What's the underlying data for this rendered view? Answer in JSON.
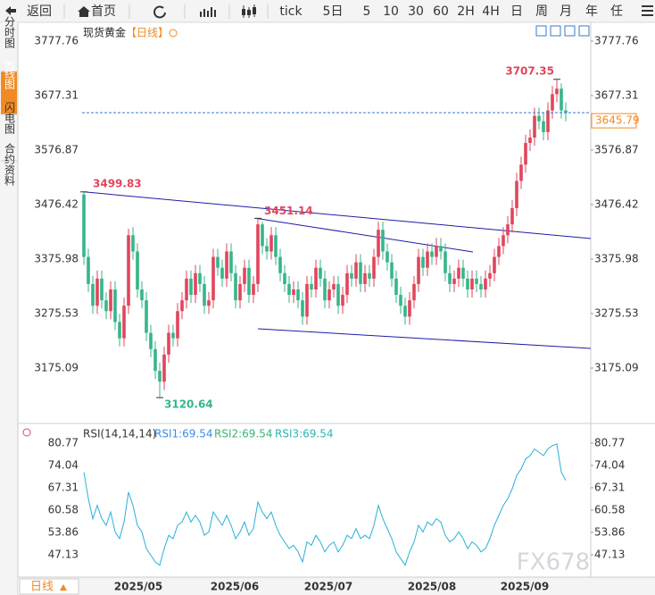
{
  "toolbar": {
    "back": "返回",
    "home": "首页",
    "periods": [
      "tick",
      "5日",
      "5",
      "10",
      "30",
      "60",
      "2H",
      "4H",
      "日",
      "周",
      "月",
      "年",
      "任"
    ]
  },
  "sidebar": {
    "tabs": [
      "分时图",
      "K线图",
      "闪电图",
      "合约资料"
    ]
  },
  "bottom_bar": {
    "period": "日线"
  },
  "watermark": "FX678",
  "chart_data": {
    "type": "candlestick",
    "title": "现货黄金",
    "subtitle": "【日线】",
    "up_color": "#e2455d",
    "down_color": "#36b68a",
    "ylim": [
      3076.3,
      3807.4
    ],
    "yticks": [
      3777.76,
      3677.31,
      3576.87,
      3476.42,
      3375.98,
      3275.53,
      3175.09
    ],
    "current_price": 3645.79,
    "x_labels": [
      "2025/05",
      "2025/06",
      "2025/07",
      "2025/08",
      "2025/09"
    ],
    "open": [
      3495,
      3380,
      3330,
      3290,
      3340,
      3300,
      3280,
      3320,
      3260,
      3230,
      3290,
      3420,
      3390,
      3320,
      3300,
      3240,
      3210,
      3170,
      3150,
      3200,
      3240,
      3230,
      3280,
      3300,
      3340,
      3310,
      3350,
      3330,
      3290,
      3300,
      3380,
      3360,
      3340,
      3390,
      3350,
      3300,
      3330,
      3360,
      3310,
      3330,
      3440,
      3400,
      3390,
      3420,
      3380,
      3350,
      3330,
      3310,
      3320,
      3300,
      3270,
      3330,
      3320,
      3360,
      3340,
      3300,
      3320,
      3330,
      3290,
      3310,
      3350,
      3340,
      3370,
      3330,
      3350,
      3340,
      3380,
      3430,
      3390,
      3370,
      3340,
      3310,
      3290,
      3270,
      3300,
      3330,
      3380,
      3360,
      3390,
      3380,
      3400,
      3390,
      3350,
      3330,
      3340,
      3360,
      3340,
      3320,
      3340,
      3330,
      3320,
      3340,
      3350,
      3380,
      3400,
      3420,
      3440,
      3470,
      3520,
      3550,
      3590,
      3600,
      3640,
      3630,
      3610,
      3650,
      3680,
      3690,
      3650
    ],
    "high": [
      3499.83,
      3395,
      3345,
      3355,
      3355,
      3315,
      3335,
      3335,
      3275,
      3305,
      3432,
      3435,
      3405,
      3335,
      3315,
      3255,
      3225,
      3185,
      3215,
      3255,
      3255,
      3295,
      3315,
      3355,
      3355,
      3365,
      3365,
      3345,
      3315,
      3395,
      3395,
      3375,
      3405,
      3405,
      3365,
      3345,
      3375,
      3375,
      3345,
      3451.14,
      3445,
      3415,
      3435,
      3435,
      3395,
      3365,
      3345,
      3335,
      3335,
      3315,
      3345,
      3345,
      3375,
      3375,
      3355,
      3335,
      3345,
      3345,
      3325,
      3365,
      3365,
      3385,
      3385,
      3365,
      3365,
      3395,
      3445,
      3445,
      3405,
      3385,
      3355,
      3325,
      3305,
      3315,
      3345,
      3395,
      3395,
      3405,
      3405,
      3415,
      3415,
      3405,
      3365,
      3355,
      3375,
      3375,
      3355,
      3355,
      3355,
      3345,
      3355,
      3365,
      3395,
      3415,
      3435,
      3455,
      3485,
      3535,
      3565,
      3605,
      3615,
      3655,
      3655,
      3645,
      3665,
      3695,
      3707.35,
      3700,
      3665
    ],
    "low": [
      3365,
      3315,
      3275,
      3275,
      3285,
      3265,
      3265,
      3245,
      3215,
      3215,
      3275,
      3375,
      3305,
      3285,
      3225,
      3195,
      3155,
      3120.64,
      3135,
      3185,
      3215,
      3215,
      3265,
      3285,
      3295,
      3295,
      3315,
      3275,
      3275,
      3285,
      3345,
      3325,
      3325,
      3335,
      3285,
      3285,
      3315,
      3295,
      3295,
      3315,
      3385,
      3375,
      3375,
      3365,
      3335,
      3315,
      3295,
      3295,
      3285,
      3255,
      3255,
      3305,
      3305,
      3325,
      3285,
      3285,
      3305,
      3275,
      3275,
      3295,
      3325,
      3325,
      3315,
      3315,
      3325,
      3325,
      3365,
      3375,
      3355,
      3325,
      3295,
      3275,
      3255,
      3255,
      3285,
      3315,
      3345,
      3345,
      3365,
      3365,
      3375,
      3335,
      3315,
      3315,
      3325,
      3325,
      3305,
      3305,
      3315,
      3305,
      3305,
      3325,
      3335,
      3365,
      3385,
      3405,
      3425,
      3455,
      3505,
      3535,
      3575,
      3585,
      3615,
      3595,
      3595,
      3635,
      3665,
      3635,
      3630
    ],
    "close": [
      3380,
      3330,
      3290,
      3340,
      3300,
      3280,
      3320,
      3260,
      3230,
      3290,
      3420,
      3390,
      3320,
      3300,
      3240,
      3210,
      3170,
      3150,
      3200,
      3240,
      3230,
      3280,
      3300,
      3340,
      3310,
      3350,
      3330,
      3290,
      3300,
      3380,
      3360,
      3340,
      3390,
      3350,
      3300,
      3330,
      3360,
      3310,
      3330,
      3440,
      3400,
      3390,
      3420,
      3380,
      3350,
      3330,
      3310,
      3320,
      3300,
      3270,
      3330,
      3320,
      3360,
      3340,
      3300,
      3320,
      3330,
      3290,
      3310,
      3350,
      3340,
      3370,
      3330,
      3350,
      3340,
      3380,
      3430,
      3390,
      3370,
      3340,
      3310,
      3290,
      3270,
      3300,
      3330,
      3380,
      3360,
      3390,
      3380,
      3400,
      3390,
      3350,
      3330,
      3340,
      3360,
      3340,
      3320,
      3340,
      3330,
      3320,
      3340,
      3350,
      3380,
      3400,
      3420,
      3440,
      3470,
      3520,
      3550,
      3590,
      3600,
      3640,
      3630,
      3610,
      3650,
      3680,
      3690,
      3650,
      3645.79
    ],
    "trend_lines": [
      {
        "start": [
          0,
          3499.83
        ],
        "end": [
          113.6,
          3413.9
        ]
      },
      {
        "start": [
          38.6,
          3451.14
        ],
        "end": [
          87.2,
          3389.2
        ]
      },
      {
        "start": [
          39,
          3247.5
        ],
        "end": [
          113.6,
          3211.3
        ]
      }
    ],
    "rsi": {
      "title": "RSI(14,14,14)",
      "legend": [
        {
          "label": "RSI1:69.54",
          "color": "#3a8ee0"
        },
        {
          "label": "RSI2:69.54",
          "color": "#3cb371"
        },
        {
          "label": "RSI3:69.54",
          "color": "#2ab5b5"
        }
      ],
      "ylim": [
        40.67,
        85.6
      ],
      "yticks": [
        80.77,
        74.04,
        67.31,
        60.58,
        53.86,
        47.13
      ],
      "color": "#2ab0d8",
      "values": [
        72,
        64,
        58,
        62,
        58,
        56,
        60,
        54,
        52,
        57,
        66,
        62,
        56,
        54,
        49,
        47,
        45,
        44,
        49,
        53,
        52,
        56,
        57,
        60,
        57,
        59,
        57,
        53,
        54,
        60,
        58,
        56,
        59,
        56,
        52,
        54,
        57,
        53,
        55,
        63,
        60,
        58,
        60,
        56,
        53,
        51,
        49,
        50,
        48,
        45,
        51,
        50,
        53,
        51,
        48,
        50,
        51,
        48,
        50,
        53,
        52,
        55,
        52,
        53,
        52,
        56,
        62,
        58,
        55,
        52,
        48,
        46,
        44,
        48,
        51,
        56,
        54,
        57,
        56,
        58,
        57,
        53,
        51,
        52,
        54,
        52,
        49,
        51,
        50,
        48,
        49,
        52,
        56,
        59,
        62,
        64,
        67,
        71,
        73,
        76,
        77,
        79,
        78,
        77,
        79,
        80,
        80.5,
        72,
        69.54
      ]
    }
  }
}
